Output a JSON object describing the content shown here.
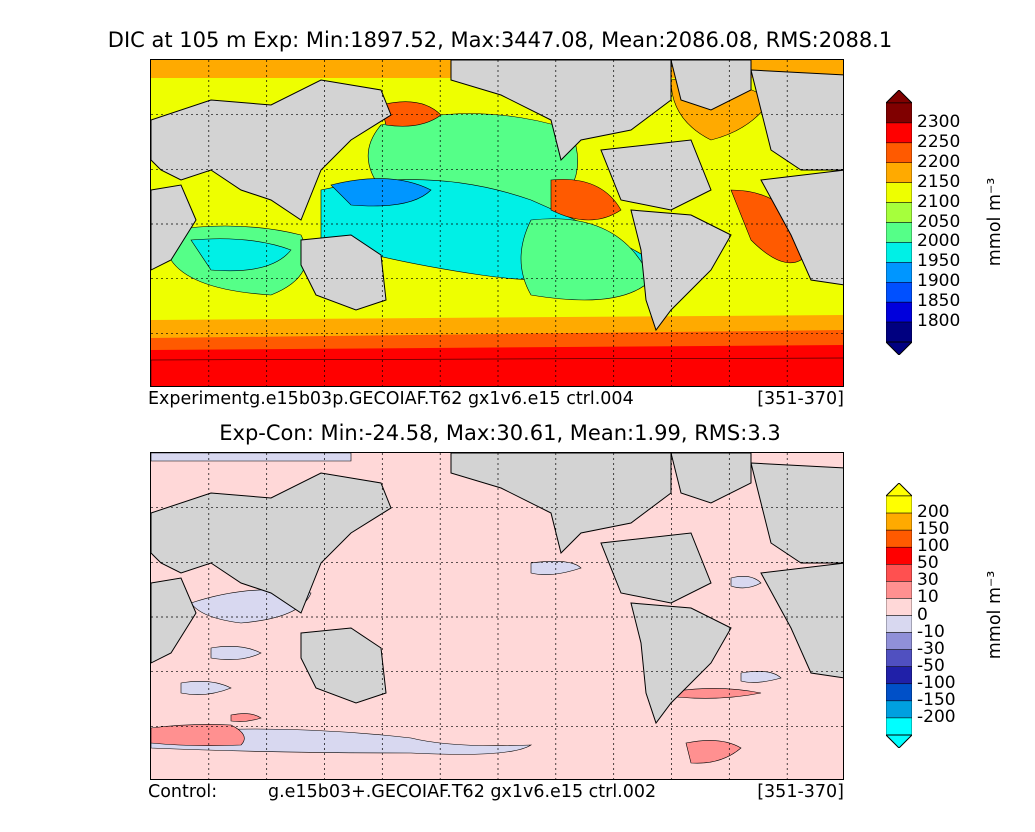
{
  "top_panel": {
    "title": "DIC at 105 m Exp: Min:1897.52, Max:3447.08, Mean:2086.08, RMS:2088.1",
    "caption_left": "Experimentg.e15b03p.GECOIAF.T62 gx1v6.e15 ctrl.004",
    "caption_right": "[351-370]",
    "units": "mmol m⁻³",
    "colorbar": {
      "ticks": [
        "2300",
        "2250",
        "2200",
        "2150",
        "2100",
        "2050",
        "2000",
        "1950",
        "1900",
        "1850",
        "1800"
      ],
      "colors": [
        "#800000",
        "#ff0000",
        "#ff5a00",
        "#ffaa00",
        "#eeff00",
        "#a6ff3c",
        "#55ff88",
        "#00f0e6",
        "#0096ff",
        "#0050ff",
        "#0000dc",
        "#000080"
      ]
    }
  },
  "bottom_panel": {
    "title": "Exp-Con: Min:-24.58, Max:30.61, Mean:1.99, RMS:3.3",
    "caption_left": "Control:",
    "caption_mid": "g.e15b03+.GECOIAF.T62 gx1v6.e15 ctrl.002",
    "caption_right": "[351-370]",
    "units": "mmol m⁻³",
    "colorbar": {
      "ticks": [
        "200",
        "150",
        "100",
        "50",
        "30",
        "10",
        "0",
        "-10",
        "-30",
        "-50",
        "-100",
        "-150",
        "-200"
      ],
      "colors": [
        "#ffff00",
        "#ffaa00",
        "#ff5a00",
        "#ff0000",
        "#ff5050",
        "#ff9090",
        "#ffd8d8",
        "#d8d8f0",
        "#9090d8",
        "#5050c0",
        "#2020a8",
        "#0050c8",
        "#00a0e0",
        "#00ffff"
      ]
    }
  },
  "chart_data": [
    {
      "type": "heatmap",
      "variable": "DIC at 105 m",
      "stats": {
        "min": 1897.52,
        "max": 3447.08,
        "mean": 2086.08,
        "rms": 2088.1
      },
      "levels": [
        1800,
        1850,
        1900,
        1950,
        2000,
        2050,
        2100,
        2150,
        2200,
        2250,
        2300
      ]
    },
    {
      "type": "heatmap",
      "variable": "Exp-Con",
      "stats": {
        "min": -24.58,
        "max": 30.61,
        "mean": 1.99,
        "rms": 3.3
      },
      "levels": [
        -200,
        -150,
        -100,
        -50,
        -30,
        -10,
        0,
        10,
        30,
        50,
        100,
        150,
        200
      ]
    }
  ]
}
